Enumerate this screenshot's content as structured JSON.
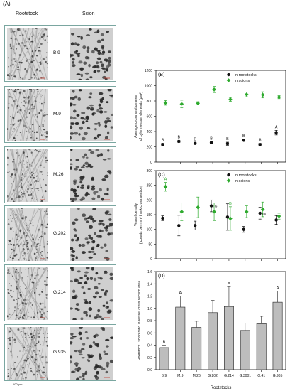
{
  "figure": {
    "label": "(A)",
    "col_rootstock": "Rootstock",
    "col_scion": "Scion",
    "rows": [
      "B.9",
      "M.9",
      "M.26",
      "G.202",
      "G.214",
      "G.935"
    ],
    "scale_label": "100 μm"
  },
  "chart_data": [
    {
      "type": "scatter",
      "panel": "(B)",
      "ylabel_line1": "Average cross section area",
      "ylabel_line2": "of xylem vessel elements (μm²)",
      "ylim": [
        0,
        1200
      ],
      "yticks": [
        0,
        200,
        400,
        600,
        800,
        1000,
        1200
      ],
      "n_x": 8,
      "legend": [
        "In rootstocks",
        "In scions"
      ],
      "legend_position": "top-right",
      "series": [
        {
          "name": "In rootstocks",
          "color": "#111111",
          "values": [
            230,
            270,
            245,
            255,
            240,
            285,
            230,
            385
          ],
          "errors": [
            15,
            12,
            10,
            10,
            20,
            12,
            15,
            30
          ],
          "labels": [
            "B",
            "B",
            "B",
            "B",
            "B",
            "B",
            "B",
            "A"
          ]
        },
        {
          "name": "In scions",
          "color": "#2eaa2e",
          "values": [
            775,
            760,
            770,
            950,
            820,
            885,
            880,
            850
          ],
          "errors": [
            30,
            50,
            20,
            40,
            25,
            30,
            40,
            20
          ],
          "labels": [
            "",
            "",
            "",
            "",
            "",
            "",
            "",
            ""
          ]
        }
      ]
    },
    {
      "type": "scatter",
      "panel": "(C)",
      "ylabel_line1": "Vessel density",
      "ylabel_line2": "( counts per mm² trunk cross section)",
      "ylim": [
        0,
        300
      ],
      "yticks": [
        0,
        50,
        100,
        150,
        200,
        250,
        300
      ],
      "n_x": 8,
      "legend": [
        "In rootstocks",
        "In scions"
      ],
      "legend_position": "top-right",
      "series": [
        {
          "name": "In rootstocks",
          "color": "#111111",
          "values": [
            138,
            113,
            113,
            180,
            142,
            100,
            155,
            132
          ],
          "errors": [
            8,
            35,
            15,
            20,
            45,
            10,
            20,
            15
          ],
          "labels": [
            "",
            "",
            "",
            "ns",
            "",
            "",
            "ns",
            ""
          ]
        },
        {
          "name": "In scions",
          "color": "#2eaa2e",
          "values": [
            245,
            160,
            175,
            160,
            137,
            160,
            168,
            145
          ],
          "errors": [
            15,
            30,
            35,
            30,
            40,
            20,
            25,
            10
          ],
          "labels": [
            "A",
            "",
            "",
            "",
            "B",
            "",
            "",
            ""
          ]
        }
      ]
    },
    {
      "type": "bar",
      "panel": "(D)",
      "ylabel": "Rootstock : scion ratio in vessel cross section area",
      "xlabel": "Rootstocks",
      "categories": [
        "B.9",
        "M.9",
        "M.26",
        "G.202",
        "G.214",
        "G.3001",
        "G.41",
        "G.935"
      ],
      "values": [
        0.36,
        1.02,
        0.69,
        0.93,
        1.03,
        0.64,
        0.75,
        1.1
      ],
      "errors": [
        0.04,
        0.18,
        0.1,
        0.2,
        0.32,
        0.12,
        0.12,
        0.18
      ],
      "labels": [
        "B",
        "A",
        "",
        "",
        "A",
        "",
        "",
        "A"
      ],
      "ylim": [
        0,
        1.6
      ],
      "yticks": [
        0.0,
        0.2,
        0.4,
        0.6,
        0.8,
        1.0,
        1.2,
        1.4,
        1.6
      ],
      "color": "#bdbdbd"
    }
  ]
}
